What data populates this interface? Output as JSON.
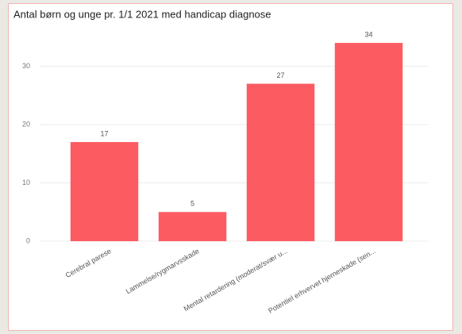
{
  "chart_data": {
    "type": "bar",
    "title": "Antal børn og unge pr. 1/1 2021 med handicap diagnose",
    "categories": [
      "Cerebral parese",
      "Lammelse/rygmarvsskade",
      "Mental retardering (moderat/svær u...",
      "Potentiel erhvervet hjerneskade (sen..."
    ],
    "values": [
      17,
      5,
      27,
      34
    ],
    "color": "#fd5b62",
    "ylim": [
      0,
      35
    ],
    "yticks": [
      0,
      10,
      20,
      30
    ],
    "grid": true,
    "data_labels": true
  }
}
